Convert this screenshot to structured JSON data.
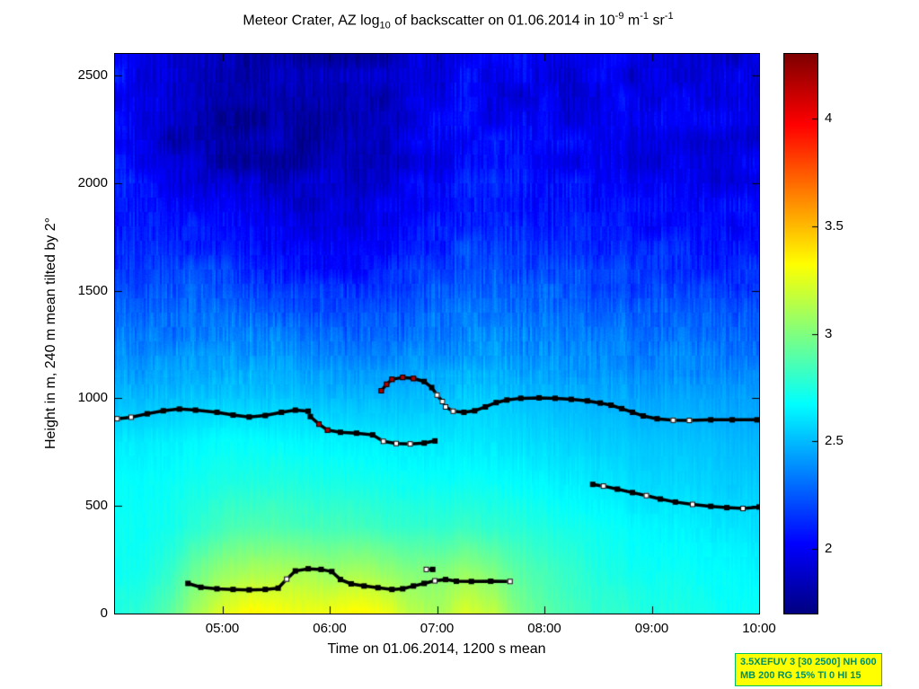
{
  "chart_data": {
    "type": "heatmap",
    "colormap": "jet",
    "title": "Meteor Crater, AZ log10 of backscatter on 01.06.2014 in 10^-9 m^-1 sr^-1",
    "title_parts": {
      "p1": "Meteor Crater, AZ log",
      "sub1": "10",
      "p2": " of backscatter on 01.06.2014 in 10",
      "sup1": "-9",
      "p3": " m",
      "sup2": "-1",
      "p4": " sr",
      "sup3": "-1"
    },
    "xlabel": "Time on 01.06.2014, 1200 s mean",
    "ylabel": "Height in m, 240 m mean tilted by 2°",
    "x_range": [
      4,
      10
    ],
    "y_range": [
      0,
      2600
    ],
    "value_range": [
      1.7,
      4.3
    ],
    "x_ticks": [
      {
        "t": 5,
        "label": "05:00"
      },
      {
        "t": 6,
        "label": "06:00"
      },
      {
        "t": 7,
        "label": "07:00"
      },
      {
        "t": 8,
        "label": "08:00"
      },
      {
        "t": 9,
        "label": "09:00"
      },
      {
        "t": 10,
        "label": "10:00"
      }
    ],
    "y_ticks": [
      0,
      500,
      1000,
      1500,
      2000,
      2500
    ],
    "colorbar_ticks": [
      2,
      2.5,
      3,
      3.5,
      4
    ],
    "grid_t": [
      4,
      4.25,
      4.5,
      4.75,
      5,
      5.25,
      5.5,
      5.75,
      6,
      6.25,
      6.5,
      6.75,
      7,
      7.25,
      7.5,
      7.75,
      8,
      8.25,
      8.5,
      8.75,
      9,
      9.25,
      9.5,
      9.75,
      10
    ],
    "grid_h": [
      0,
      200,
      400,
      600,
      800,
      1000,
      1200,
      1400,
      1600,
      1800,
      2000,
      2200,
      2400,
      2600
    ],
    "values": [
      [
        2.75,
        2.8,
        2.9,
        3.1,
        3.25,
        3.35,
        3.32,
        3.28,
        3.3,
        3.35,
        3.3,
        3.15,
        3.1,
        3.22,
        3.18,
        3.0,
        2.9,
        2.85,
        2.8,
        2.8,
        2.75,
        2.75,
        2.72,
        2.7,
        2.7
      ],
      [
        2.7,
        2.72,
        2.8,
        2.95,
        3.05,
        3.1,
        3.1,
        3.1,
        3.05,
        3.1,
        3.05,
        3.0,
        3.0,
        3.05,
        3.0,
        2.9,
        2.85,
        2.8,
        2.75,
        2.72,
        2.7,
        2.7,
        2.68,
        2.68,
        2.65
      ],
      [
        2.7,
        2.7,
        2.72,
        2.78,
        2.85,
        2.88,
        2.88,
        2.85,
        2.85,
        2.85,
        2.82,
        2.8,
        2.8,
        2.82,
        2.8,
        2.78,
        2.75,
        2.72,
        2.7,
        2.68,
        2.66,
        2.65,
        2.63,
        2.62,
        2.6
      ],
      [
        2.68,
        2.68,
        2.7,
        2.72,
        2.75,
        2.76,
        2.76,
        2.75,
        2.74,
        2.74,
        2.72,
        2.7,
        2.7,
        2.7,
        2.7,
        2.68,
        2.66,
        2.64,
        2.62,
        2.6,
        2.58,
        2.58,
        2.56,
        2.55,
        2.55
      ],
      [
        2.62,
        2.63,
        2.64,
        2.66,
        2.68,
        2.68,
        2.67,
        2.66,
        2.65,
        2.64,
        2.63,
        2.62,
        2.62,
        2.62,
        2.62,
        2.6,
        2.58,
        2.56,
        2.55,
        2.54,
        2.53,
        2.52,
        2.52,
        2.5,
        2.5
      ],
      [
        2.5,
        2.5,
        2.52,
        2.53,
        2.54,
        2.54,
        2.53,
        2.52,
        2.5,
        2.5,
        2.5,
        2.5,
        2.52,
        2.54,
        2.55,
        2.52,
        2.5,
        2.48,
        2.47,
        2.46,
        2.45,
        2.45,
        2.44,
        2.44,
        2.43
      ],
      [
        2.38,
        2.38,
        2.4,
        2.4,
        2.42,
        2.42,
        2.4,
        2.38,
        2.36,
        2.36,
        2.36,
        2.38,
        2.4,
        2.42,
        2.44,
        2.42,
        2.4,
        2.38,
        2.37,
        2.36,
        2.35,
        2.35,
        2.34,
        2.34,
        2.33
      ],
      [
        2.28,
        2.28,
        2.3,
        2.3,
        2.3,
        2.28,
        2.26,
        2.24,
        2.22,
        2.22,
        2.24,
        2.26,
        2.3,
        2.32,
        2.34,
        2.32,
        2.3,
        2.28,
        2.27,
        2.26,
        2.26,
        2.25,
        2.25,
        2.24,
        2.24
      ],
      [
        2.18,
        2.18,
        2.2,
        2.18,
        2.16,
        2.14,
        2.12,
        2.1,
        2.08,
        2.08,
        2.1,
        2.14,
        2.18,
        2.22,
        2.24,
        2.22,
        2.2,
        2.18,
        2.17,
        2.16,
        2.16,
        2.15,
        2.15,
        2.15,
        2.14
      ],
      [
        2.1,
        2.08,
        2.08,
        2.06,
        2.02,
        2.0,
        1.98,
        1.96,
        1.95,
        1.96,
        2.0,
        2.04,
        2.08,
        2.12,
        2.14,
        2.12,
        2.1,
        2.09,
        2.08,
        2.08,
        2.07,
        2.07,
        2.06,
        2.06,
        2.06
      ],
      [
        2.08,
        2.02,
        2.0,
        1.95,
        1.9,
        1.88,
        1.86,
        1.85,
        1.85,
        1.88,
        1.92,
        1.98,
        2.02,
        2.06,
        2.08,
        2.06,
        2.04,
        2.03,
        2.02,
        2.02,
        2.01,
        2.01,
        2.0,
        2.0,
        2.0
      ],
      [
        2.05,
        2.0,
        1.9,
        1.85,
        1.82,
        1.8,
        1.8,
        1.8,
        1.8,
        1.83,
        1.88,
        1.93,
        1.98,
        2.02,
        2.04,
        2.02,
        2.0,
        1.99,
        1.98,
        1.98,
        1.97,
        1.97,
        1.96,
        1.96,
        1.96
      ],
      [
        2.05,
        1.98,
        1.88,
        1.83,
        1.8,
        1.78,
        1.78,
        1.79,
        1.8,
        1.82,
        1.86,
        1.9,
        1.95,
        2.0,
        2.02,
        2.0,
        1.98,
        1.97,
        1.96,
        1.96,
        1.95,
        1.95,
        1.95,
        1.94,
        1.94
      ],
      [
        2.08,
        2.0,
        1.88,
        1.84,
        1.8,
        1.79,
        1.79,
        1.8,
        1.81,
        1.83,
        1.86,
        1.9,
        1.94,
        1.98,
        2.0,
        1.99,
        1.97,
        1.96,
        1.96,
        1.95,
        1.95,
        1.94,
        1.94,
        1.94,
        1.93
      ]
    ],
    "layers": [
      {
        "name": "main_layer_left",
        "points": [
          [
            4.02,
            905
          ],
          [
            4.15,
            912
          ],
          [
            4.3,
            928
          ],
          [
            4.45,
            942
          ],
          [
            4.6,
            950
          ],
          [
            4.75,
            945
          ],
          [
            4.95,
            935
          ],
          [
            5.1,
            922
          ],
          [
            5.25,
            913
          ],
          [
            5.4,
            920
          ],
          [
            5.55,
            935
          ],
          [
            5.68,
            945
          ],
          [
            5.8,
            940
          ]
        ],
        "white": [
          0,
          1
        ],
        "red": []
      },
      {
        "name": "dip_segment",
        "points": [
          [
            5.82,
            915
          ],
          [
            5.9,
            880
          ],
          [
            5.98,
            852
          ],
          [
            6.1,
            842
          ],
          [
            6.25,
            838
          ],
          [
            6.4,
            830
          ],
          [
            6.5,
            800
          ],
          [
            6.62,
            790
          ],
          [
            6.75,
            788
          ],
          [
            6.88,
            792
          ],
          [
            6.98,
            802
          ]
        ],
        "white": [
          6,
          7,
          8
        ],
        "red": [
          1,
          2
        ]
      },
      {
        "name": "upper_blob",
        "points": [
          [
            6.48,
            1035
          ],
          [
            6.53,
            1065
          ],
          [
            6.58,
            1088
          ],
          [
            6.68,
            1097
          ],
          [
            6.78,
            1092
          ],
          [
            6.88,
            1078
          ],
          [
            6.95,
            1050
          ],
          [
            7.0,
            1015
          ],
          [
            7.05,
            985
          ]
        ],
        "white": [
          7,
          8
        ],
        "red": [
          0,
          1,
          2,
          3,
          4
        ]
      },
      {
        "name": "main_layer_right",
        "points": [
          [
            7.08,
            960
          ],
          [
            7.15,
            940
          ],
          [
            7.25,
            935
          ],
          [
            7.35,
            942
          ],
          [
            7.45,
            960
          ],
          [
            7.55,
            980
          ],
          [
            7.65,
            992
          ],
          [
            7.78,
            1000
          ],
          [
            7.95,
            1002
          ],
          [
            8.1,
            1000
          ],
          [
            8.25,
            995
          ],
          [
            8.4,
            988
          ],
          [
            8.52,
            978
          ],
          [
            8.62,
            968
          ],
          [
            8.72,
            952
          ],
          [
            8.82,
            935
          ],
          [
            8.92,
            918
          ],
          [
            9.05,
            905
          ],
          [
            9.2,
            898
          ],
          [
            9.35,
            897
          ],
          [
            9.55,
            900
          ],
          [
            9.75,
            900
          ],
          [
            9.98,
            900
          ]
        ],
        "white": [
          0,
          1,
          18,
          19
        ],
        "red": []
      },
      {
        "name": "descending_layer_right",
        "points": [
          [
            8.45,
            600
          ],
          [
            8.55,
            592
          ],
          [
            8.68,
            578
          ],
          [
            8.82,
            562
          ],
          [
            8.95,
            548
          ],
          [
            9.08,
            532
          ],
          [
            9.22,
            518
          ],
          [
            9.38,
            507
          ],
          [
            9.55,
            498
          ],
          [
            9.7,
            492
          ],
          [
            9.85,
            488
          ],
          [
            10.0,
            495
          ]
        ],
        "white": [
          1,
          4,
          7,
          10
        ],
        "red": []
      },
      {
        "name": "surface_layer",
        "points": [
          [
            4.68,
            140
          ],
          [
            4.8,
            122
          ],
          [
            4.95,
            115
          ],
          [
            5.1,
            112
          ],
          [
            5.25,
            110
          ],
          [
            5.4,
            112
          ],
          [
            5.52,
            118
          ],
          [
            5.6,
            160
          ],
          [
            5.68,
            198
          ],
          [
            5.8,
            208
          ],
          [
            5.92,
            205
          ],
          [
            6.02,
            195
          ],
          [
            6.1,
            158
          ],
          [
            6.2,
            138
          ],
          [
            6.32,
            128
          ],
          [
            6.45,
            120
          ],
          [
            6.58,
            112
          ],
          [
            6.68,
            115
          ],
          [
            6.78,
            128
          ],
          [
            6.88,
            140
          ],
          [
            6.98,
            152
          ],
          [
            7.08,
            158
          ],
          [
            7.18,
            150
          ],
          [
            7.32,
            149
          ],
          [
            7.5,
            150
          ],
          [
            7.68,
            149
          ]
        ],
        "white": [
          7,
          20,
          25
        ],
        "red": []
      },
      {
        "name": "surface_dots",
        "points": [
          [
            6.9,
            205
          ],
          [
            6.96,
            205
          ]
        ],
        "white": [
          0
        ],
        "red": []
      }
    ]
  },
  "annotation": {
    "line1": "3.5XEFUV 3 [30 2500] NH 600",
    "line2": "MB 200 RG 15% TI 0 HI 15"
  },
  "colors": {
    "background": "#ffffff",
    "axis": "#000000",
    "annotation_bg": "#ffff00",
    "annotation_border": "#00c060",
    "annotation_text": "#009060",
    "marker_black": "#000000",
    "marker_white": "#ffffff",
    "marker_red": "#b00000"
  }
}
